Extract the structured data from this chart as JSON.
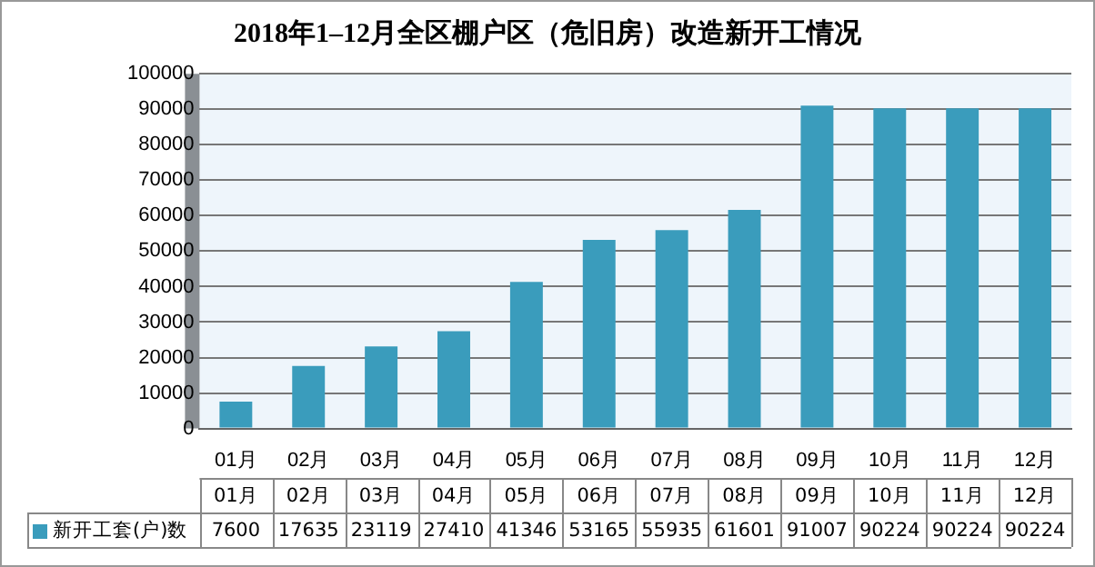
{
  "chart_data": {
    "type": "bar",
    "title": "2018年1–12月全区棚户区（危旧房）改造新开工情况",
    "categories": [
      "01月",
      "02月",
      "03月",
      "04月",
      "05月",
      "06月",
      "07月",
      "08月",
      "09月",
      "10月",
      "11月",
      "12月"
    ],
    "series": [
      {
        "name": "新开工套(户)数",
        "color": "#3a9cbc",
        "values": [
          7600,
          17635,
          23119,
          27410,
          41346,
          53165,
          55935,
          61601,
          91007,
          90224,
          90224,
          90224
        ]
      }
    ],
    "ylim": [
      0,
      100000
    ],
    "yticks": [
      0,
      10000,
      20000,
      30000,
      40000,
      50000,
      60000,
      70000,
      80000,
      90000,
      100000
    ],
    "grid": "y",
    "legend": "bottom",
    "data_labels": true
  }
}
